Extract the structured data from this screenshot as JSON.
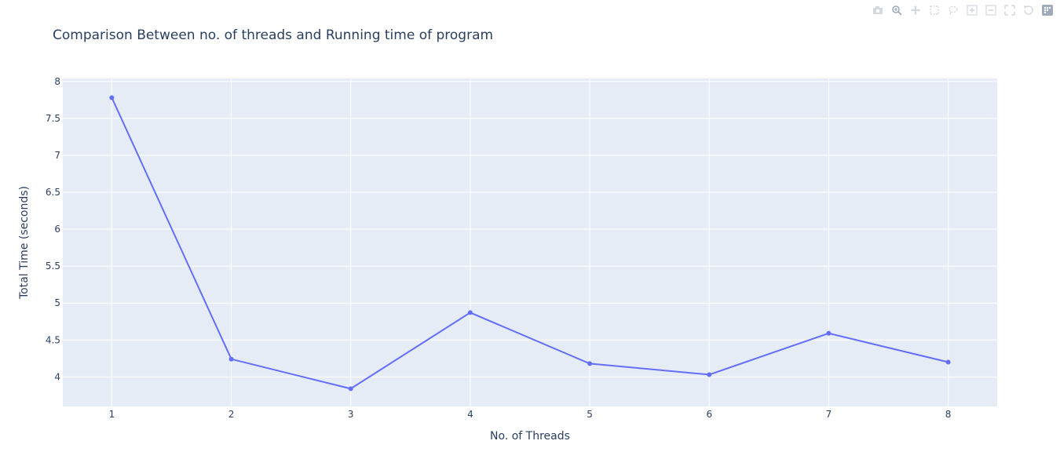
{
  "modebar": {
    "icons": [
      "camera-icon",
      "zoom-icon",
      "pan-icon",
      "box-select-icon",
      "lasso-select-icon",
      "zoom-in-icon",
      "zoom-out-icon",
      "autoscale-icon",
      "reset-axes-icon",
      "plotly-logo-icon"
    ]
  },
  "chart_data": {
    "type": "line",
    "title": "Comparison Between no. of threads and Running time of program",
    "xlabel": "No. of Threads",
    "ylabel": "Total Time (seconds)",
    "x": [
      1,
      2,
      3,
      4,
      5,
      6,
      7,
      8
    ],
    "series": [
      {
        "values": [
          7.78,
          4.24,
          3.84,
          4.87,
          4.18,
          4.03,
          4.59,
          4.2
        ]
      }
    ],
    "xlim": [
      0.59,
      8.41
    ],
    "ylim": [
      3.6,
      8.04
    ],
    "xticks": [
      "1",
      "2",
      "3",
      "4",
      "5",
      "6",
      "7",
      "8"
    ],
    "yticks": [
      "4",
      "4.5",
      "5",
      "5.5",
      "6",
      "6.5",
      "7",
      "7.5",
      "8"
    ],
    "grid": true,
    "colors": {
      "line": "#636efa",
      "plot_bg": "#e5ecf6",
      "grid": "#ffffff",
      "text": "#2a3f5f"
    }
  }
}
